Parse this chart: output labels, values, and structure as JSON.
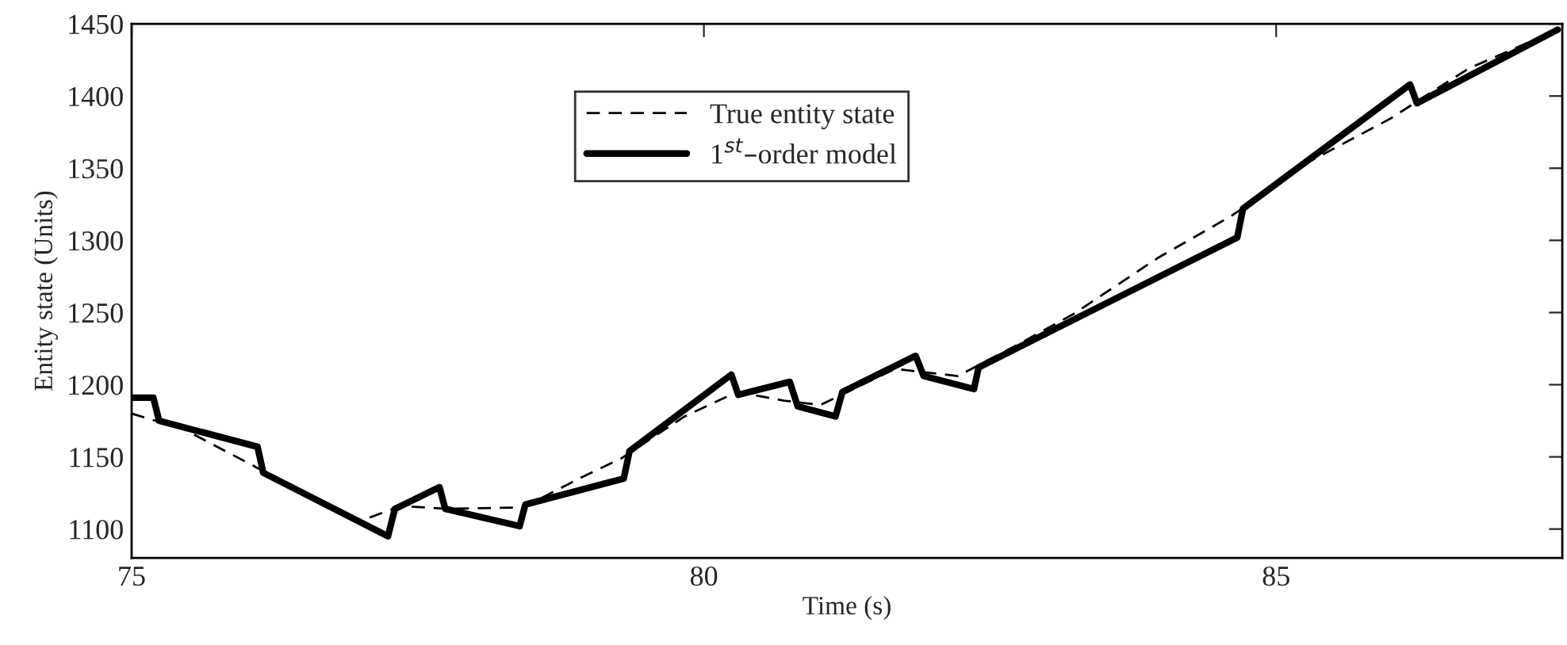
{
  "chart_data": {
    "type": "line",
    "xlabel": "Time (s)",
    "ylabel": "Entity state (Units)",
    "xlim": [
      75,
      87.5
    ],
    "xticks": [
      75,
      80,
      85
    ],
    "ylim": [
      1080,
      1450
    ],
    "yticks": [
      1100,
      1150,
      1200,
      1250,
      1300,
      1350,
      1400,
      1450
    ],
    "grid": false,
    "legend": "top",
    "marker": "none",
    "series": [
      {
        "name": "True entity state",
        "color": "#000000",
        "line_style": "dashed",
        "x": [
          75,
          75.46,
          76.06,
          76.61,
          76.98,
          77.35,
          77.76,
          78.42,
          78.91,
          79.28,
          79.83,
          80.29,
          80.7,
          81.02,
          81.67,
          82.22,
          82.77,
          83.23,
          83.97,
          84.61,
          85.3,
          85.99,
          86.68,
          87.46
        ],
        "values": [
          1180,
          1169,
          1144,
          1120,
          1105,
          1116,
          1114,
          1115,
          1135,
          1149,
          1178,
          1195,
          1189,
          1186,
          1211,
          1206,
          1229,
          1249,
          1288,
          1317,
          1355,
          1384,
          1419,
          1446
        ]
      },
      {
        "name": "1$^{st}$–order model",
        "color": "#000000",
        "line_style": "solid",
        "x": [
          75,
          75.19,
          75.24,
          76.1,
          76.15,
          77.24,
          77.3,
          77.69,
          77.74,
          78.39,
          78.44,
          79.3,
          79.35,
          80.24,
          80.3,
          80.75,
          80.82,
          81.15,
          81.21,
          81.85,
          81.92,
          82.36,
          82.4,
          84.66,
          84.71,
          86.17,
          86.23,
          87.46
        ],
        "values": [
          1191,
          1191,
          1175,
          1157,
          1139,
          1095,
          1114,
          1129,
          1114,
          1102,
          1117,
          1135,
          1154,
          1207,
          1193,
          1202,
          1185,
          1178,
          1195,
          1220,
          1206,
          1197,
          1212,
          1302,
          1322,
          1408,
          1395,
          1446
        ]
      }
    ]
  }
}
